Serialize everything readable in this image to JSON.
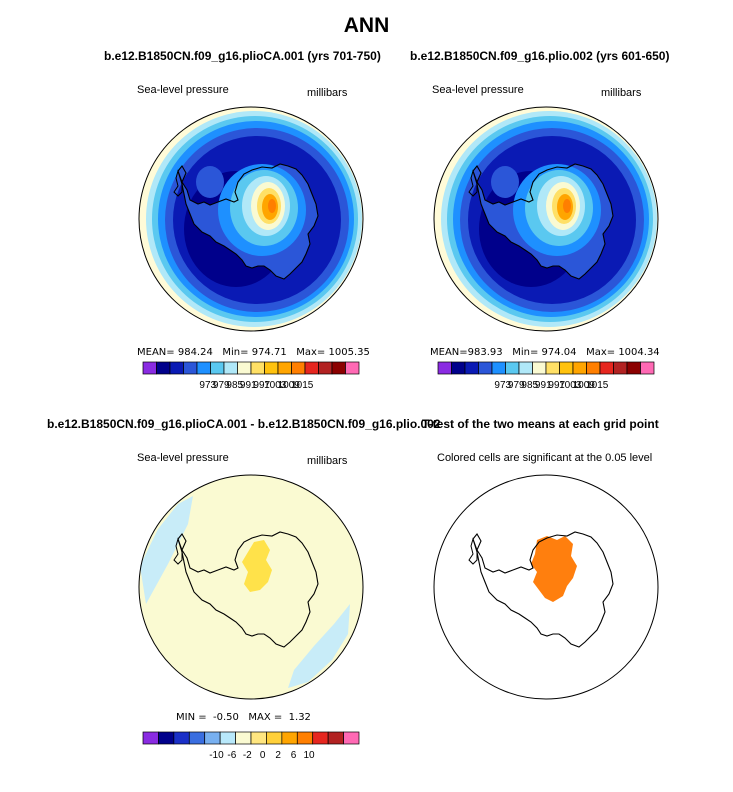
{
  "figure": {
    "title": "ANN",
    "panels": [
      {
        "title": "b.e12.B1850CN.f09_g16.plioCA.001 (yrs 701-750)",
        "left_label": "Sea-level pressure",
        "right_label": "millibars",
        "stats": {
          "mean_label": "MEAN=",
          "mean": "984.24",
          "min_label": "Min=",
          "min": "974.71",
          "max_label": "Max=",
          "max": "1005.35"
        }
      },
      {
        "title": "b.e12.B1850CN.f09_g16.plio.002 (yrs 601-650)",
        "left_label": "Sea-level pressure",
        "right_label": "millibars",
        "stats": {
          "mean_label": "MEAN=",
          "mean": "983.93",
          "min_label": "Min=",
          "min": "974.04",
          "max_label": "Max=",
          "max": "1004.34"
        }
      },
      {
        "title": "b.e12.B1850CN.f09_g16.plioCA.001 - b.e12.B1850CN.f09_g16.plio.002",
        "left_label": "Sea-level pressure",
        "right_label": "millibars",
        "stats": {
          "min_label": "MIN =",
          "min": "-0.50",
          "max_label": "MAX =",
          "max": "1.32"
        }
      },
      {
        "title": "T-test of the two means at each grid point",
        "left_label": "Colored cells are significant at the 0.05 level"
      }
    ]
  },
  "chart_data": [
    {
      "type": "heatmap",
      "title": "b.e12.B1850CN.f09_g16.plioCA.001 (yrs 701-750)",
      "variable": "Sea-level pressure",
      "units": "millibars",
      "projection": "south polar stereographic",
      "stats": {
        "mean": 984.24,
        "min": 974.71,
        "max": 1005.35
      },
      "contour_levels": [
        "973",
        "979",
        "985",
        "991",
        "997",
        "1003",
        "1009",
        "1015"
      ],
      "colors": [
        "#8a2be2",
        "#00008b",
        "#0a1ab4",
        "#2b56d8",
        "#1e90ff",
        "#5ac8f0",
        "#b0e8f8",
        "#fafad2",
        "#ffe066",
        "#ffc20e",
        "#ffa500",
        "#ff7f00",
        "#e6261f",
        "#b22222",
        "#8b0000",
        "#ff69b4"
      ]
    },
    {
      "type": "heatmap",
      "title": "b.e12.B1850CN.f09_g16.plio.002 (yrs 601-650)",
      "variable": "Sea-level pressure",
      "units": "millibars",
      "projection": "south polar stereographic",
      "stats": {
        "mean": 983.93,
        "min": 974.04,
        "max": 1004.34
      },
      "contour_levels": [
        "973",
        "979",
        "985",
        "991",
        "997",
        "1003",
        "1009",
        "1015"
      ],
      "colors": [
        "#8a2be2",
        "#00008b",
        "#0a1ab4",
        "#2b56d8",
        "#1e90ff",
        "#5ac8f0",
        "#b0e8f8",
        "#fafad2",
        "#ffe066",
        "#ffc20e",
        "#ffa500",
        "#ff7f00",
        "#e6261f",
        "#b22222",
        "#8b0000",
        "#ff69b4"
      ]
    },
    {
      "type": "heatmap",
      "title": "b.e12.B1850CN.f09_g16.plioCA.001 - b.e12.B1850CN.f09_g16.plio.002",
      "variable": "Sea-level pressure",
      "units": "millibars",
      "projection": "south polar stereographic",
      "stats": {
        "min": -0.5,
        "max": 1.32
      },
      "contour_levels": [
        "-10",
        "-6",
        "-2",
        "0",
        "2",
        "6",
        "10"
      ],
      "colors": [
        "#8a2be2",
        "#00008b",
        "#1a30c8",
        "#3a6ee0",
        "#78b0f0",
        "#b8e8fa",
        "#fafad2",
        "#ffe680",
        "#ffd03a",
        "#ffa500",
        "#ff7f00",
        "#e6261f",
        "#b22222",
        "#ff69b4"
      ]
    },
    {
      "type": "heatmap",
      "title": "T-test of the two means at each grid point",
      "subtitle": "Colored cells are significant at the 0.05 level",
      "projection": "south polar stereographic",
      "significant_color": "#ff7f0e"
    }
  ]
}
